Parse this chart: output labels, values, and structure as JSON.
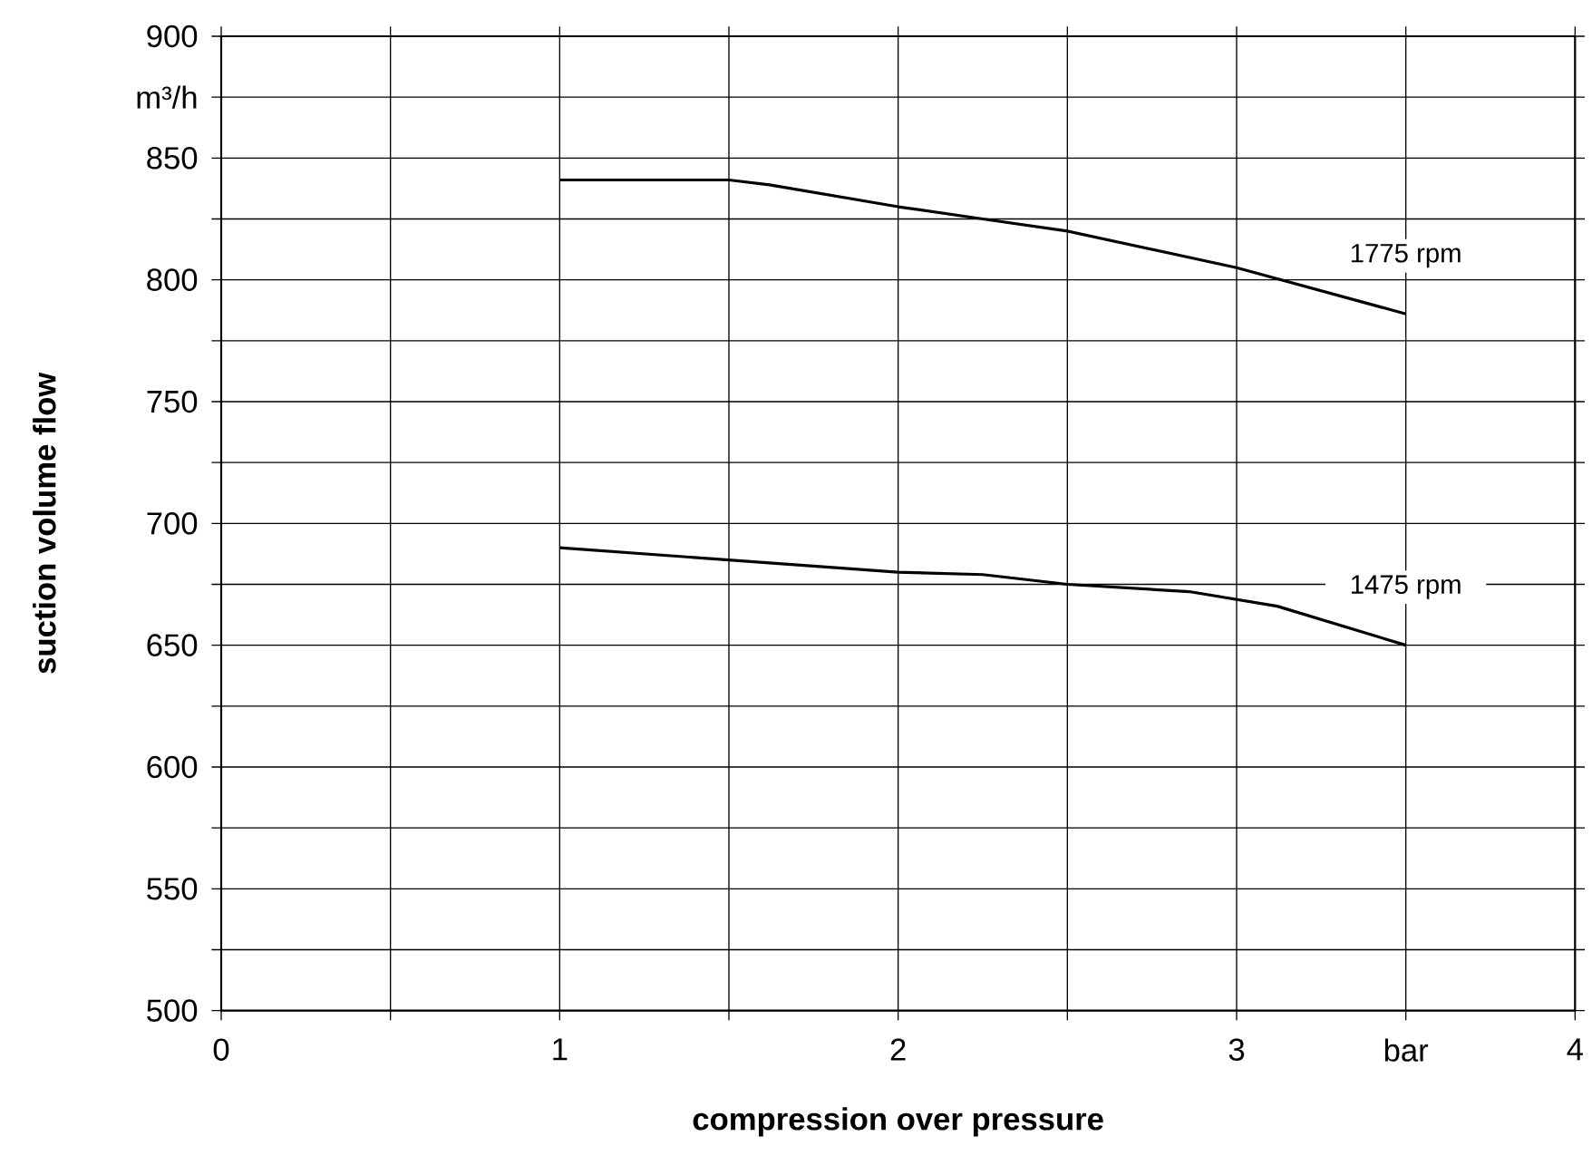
{
  "chart_data": {
    "type": "line",
    "xlabel": "compression over pressure",
    "ylabel": "suction volume flow",
    "xlim": [
      0,
      4
    ],
    "ylim": [
      500,
      900
    ],
    "xticks": [
      0,
      {
        "value": 0.5,
        "label": null
      },
      1,
      {
        "value": 1.5,
        "label": null
      },
      2,
      {
        "value": 2.5,
        "label": null
      },
      3,
      {
        "value": 3.5,
        "label": "bar"
      },
      4
    ],
    "yticks": [
      500,
      {
        "value": 525,
        "label": null
      },
      550,
      {
        "value": 575,
        "label": null
      },
      600,
      {
        "value": 625,
        "label": null
      },
      650,
      {
        "value": 675,
        "label": null
      },
      700,
      {
        "value": 725,
        "label": null
      },
      750,
      {
        "value": 775,
        "label": null
      },
      800,
      {
        "value": 825,
        "label": null
      },
      850,
      {
        "value": 875,
        "label": "m³/h"
      },
      900
    ],
    "grid": true,
    "marker": "none",
    "line_style": "solid",
    "series": [
      {
        "name": "1775 rpm",
        "color": "#000000",
        "x": [
          1,
          1.5,
          1.62,
          2,
          2.25,
          2.5,
          3,
          3.5
        ],
        "values": [
          841,
          841,
          839,
          830,
          825,
          820,
          805,
          786
        ]
      },
      {
        "name": "1475 rpm",
        "color": "#000000",
        "x": [
          1,
          1.5,
          2,
          2.25,
          2.5,
          2.86,
          3.12,
          3.5
        ],
        "values": [
          690,
          685,
          680,
          679,
          675,
          672,
          666,
          650
        ]
      }
    ]
  }
}
